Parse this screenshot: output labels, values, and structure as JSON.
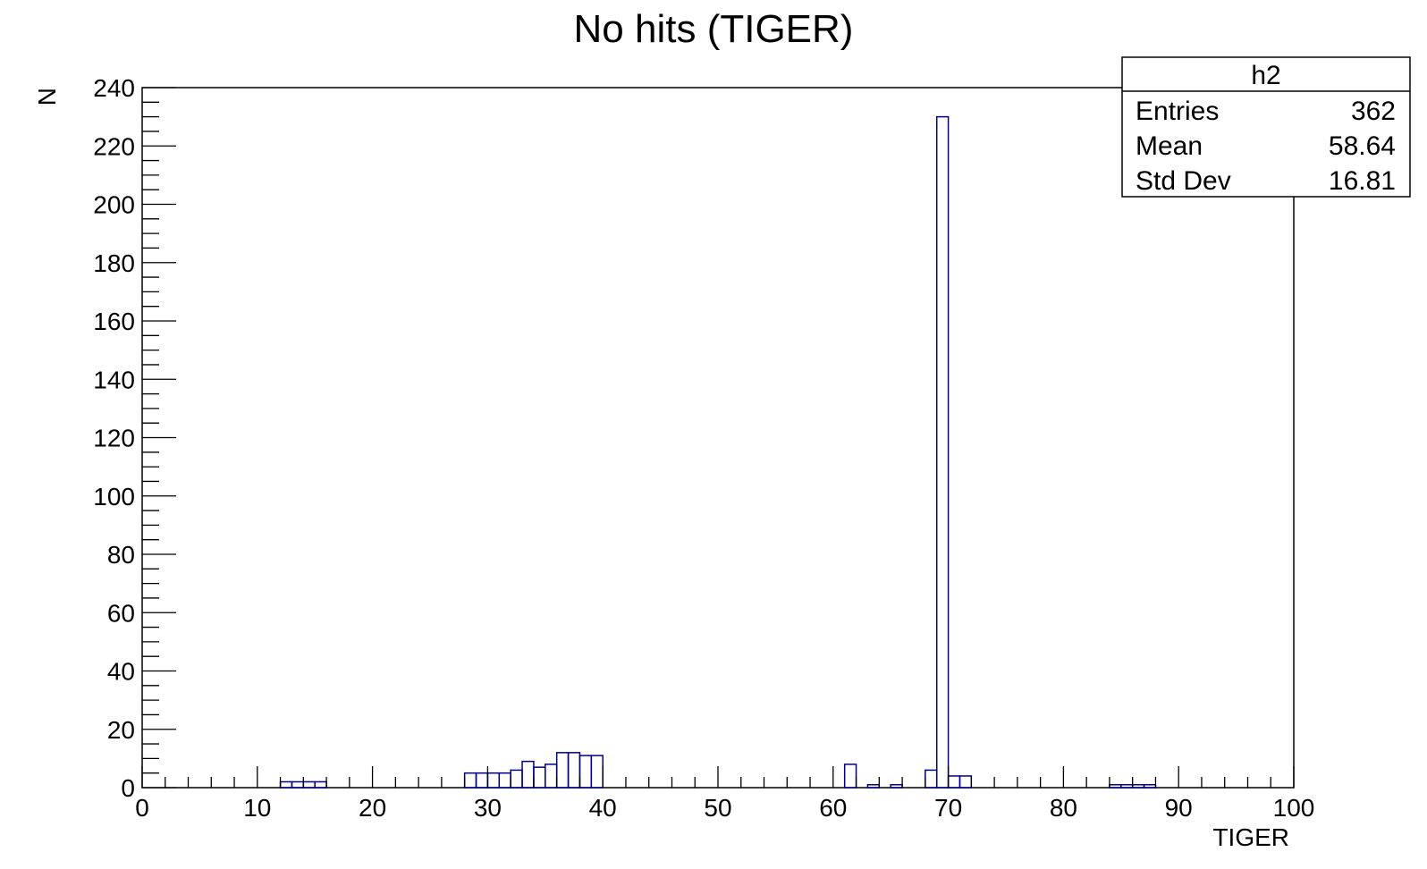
{
  "chart_data": {
    "type": "bar",
    "title": "No hits (TIGER)",
    "xlabel": "TIGER",
    "ylabel": "N",
    "xlim": [
      0,
      100
    ],
    "ylim": [
      0,
      240
    ],
    "x_ticks": [
      "0",
      "10",
      "20",
      "30",
      "40",
      "50",
      "60",
      "70",
      "80",
      "90",
      "100"
    ],
    "y_ticks": [
      "0",
      "20",
      "40",
      "60",
      "80",
      "100",
      "120",
      "140",
      "160",
      "180",
      "200",
      "220",
      "240"
    ],
    "bin_width": 1,
    "bin_starts": [
      12,
      13,
      14,
      15,
      28,
      29,
      30,
      31,
      32,
      33,
      34,
      35,
      36,
      37,
      38,
      39,
      61,
      63,
      65,
      68,
      69,
      70,
      71,
      84,
      85,
      86,
      87
    ],
    "values": [
      2,
      2,
      2,
      2,
      5,
      5,
      5,
      5,
      6,
      9,
      7,
      8,
      12,
      12,
      11,
      11,
      8,
      1,
      1,
      6,
      230,
      4,
      4,
      1,
      1,
      1,
      1
    ],
    "line_color": "#00008b",
    "stats_box": {
      "name": "h2",
      "rows": [
        {
          "label": "Entries",
          "value": "362"
        },
        {
          "label": "Mean",
          "value": "58.64"
        },
        {
          "label": "Std Dev",
          "value": "16.81"
        }
      ]
    }
  }
}
